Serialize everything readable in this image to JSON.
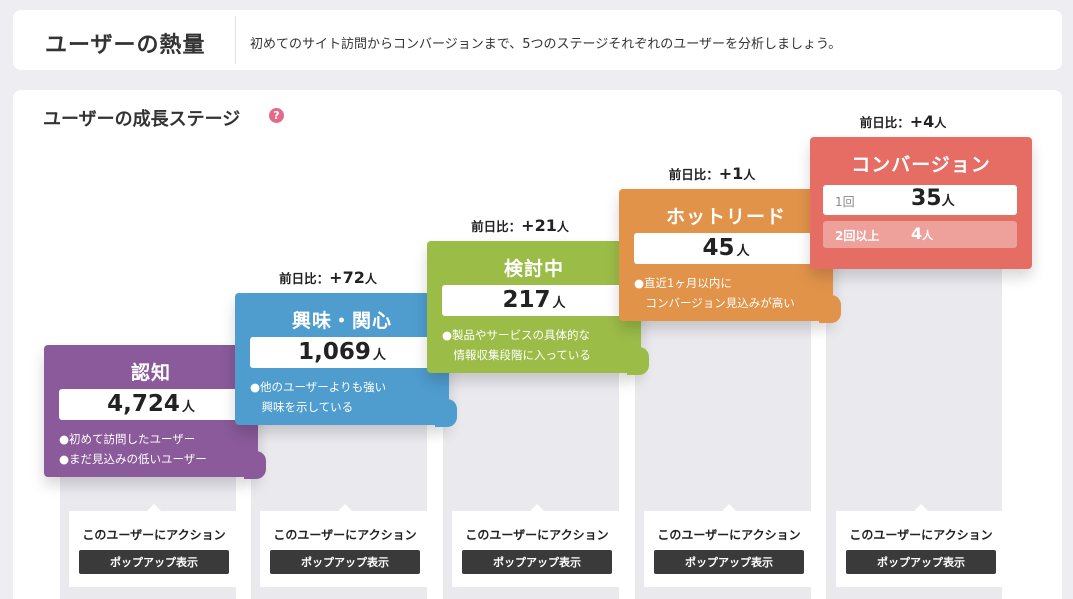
{
  "header": {
    "title": "ユーザーの熱量",
    "description": "初めてのサイト訪問からコンバージョンまで、5つのステージそれぞれのユーザーを分析しましょう。"
  },
  "section": {
    "title": "ユーザーの成長ステージ",
    "help_icon": "?"
  },
  "diff_label": "前日比：",
  "unit": "人",
  "stages": [
    {
      "name": "認知",
      "count": "4,724",
      "color": "#8a5a9a",
      "desc": [
        "●初めて訪問したユーザー",
        "●まだ見込みの低いユーザー"
      ]
    },
    {
      "name": "興味・関心",
      "count": "1,069",
      "diff": "+72",
      "color": "#4f9ccf",
      "desc": [
        "●他のユーザーよりも強い",
        "　興味を示している"
      ]
    },
    {
      "name": "検討中",
      "count": "217",
      "diff": "+21",
      "color": "#9cbc48",
      "desc": [
        "●製品やサービスの具体的な",
        "　情報収集段階に入っている"
      ]
    },
    {
      "name": "ホットリード",
      "count": "45",
      "diff": "+1",
      "color": "#e2934a",
      "desc": [
        "●直近1ヶ月以内に",
        "　コンバージョン見込みが高い"
      ]
    },
    {
      "name": "コンバージョン",
      "diff": "+4",
      "color": "#e56d63",
      "sub": [
        {
          "label": "1回",
          "value": "35"
        },
        {
          "label": "2回以上",
          "value": "4"
        }
      ]
    }
  ],
  "action": {
    "label": "このユーザーにアクション",
    "button": "ポップアップ表示"
  }
}
